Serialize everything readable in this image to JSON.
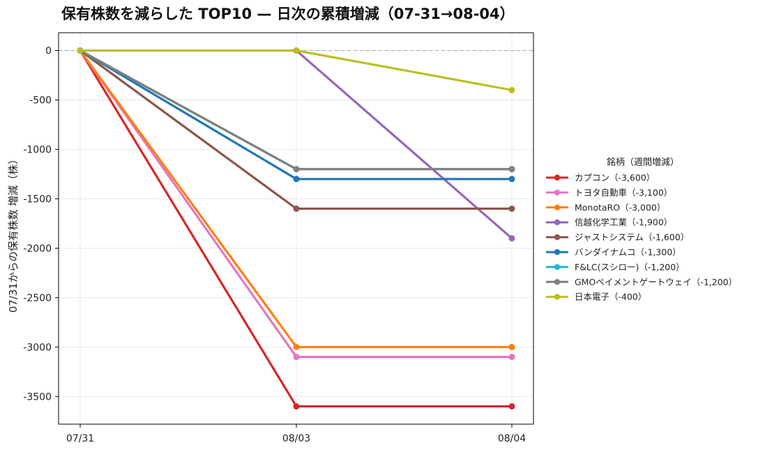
{
  "chart_data": {
    "type": "line",
    "title": "保有株数を減らした TOP10 — 日次の累積増減（07-31→08-04）",
    "xlabel": "",
    "ylabel": "07/31からの保有株数 増減（株）",
    "categories": [
      "07/31",
      "08/03",
      "08/04"
    ],
    "ylim": [
      -3780,
      180
    ],
    "yticks": [
      0,
      -500,
      -1000,
      -1500,
      -2000,
      -2500,
      -3000,
      -3500
    ],
    "ytick_labels": [
      "0",
      "-500",
      "-1000",
      "-1500",
      "-2000",
      "-2500",
      "-3000",
      "-3500"
    ],
    "grid": true,
    "zero_line": {
      "value": 0,
      "style": "dashed",
      "color": "#b0b0b0"
    },
    "legend": {
      "title": "銘柄（週間増減）",
      "placement": "right"
    },
    "series": [
      {
        "name": "カプコン（-3,600）",
        "color": "#d62728",
        "values": [
          0,
          -3600,
          -3600
        ]
      },
      {
        "name": "トヨタ自動車（-3,100）",
        "color": "#e377c2",
        "values": [
          0,
          -3100,
          -3100
        ]
      },
      {
        "name": "MonotaRO（-3,000）",
        "color": "#ff7f0e",
        "values": [
          0,
          -3000,
          -3000
        ]
      },
      {
        "name": "信越化学工業（-1,900）",
        "color": "#9467bd",
        "values": [
          0,
          0,
          -1900
        ]
      },
      {
        "name": "ジャストシステム（-1,600）",
        "color": "#8c564b",
        "values": [
          0,
          -1600,
          -1600
        ]
      },
      {
        "name": "バンダイナムコ（-1,300）",
        "color": "#1f77b4",
        "values": [
          0,
          -1300,
          -1300
        ]
      },
      {
        "name": "F&LC(スシロー)（-1,200）",
        "color": "#17becf",
        "values": [
          0,
          -1200,
          -1200
        ]
      },
      {
        "name": "GMOペイメントゲートウェイ（-1,200）",
        "color": "#7f7f7f",
        "values": [
          0,
          -1200,
          -1200
        ]
      },
      {
        "name": "日本電子（-400）",
        "color": "#bcbd22",
        "values": [
          0,
          0,
          -400
        ]
      }
    ]
  }
}
